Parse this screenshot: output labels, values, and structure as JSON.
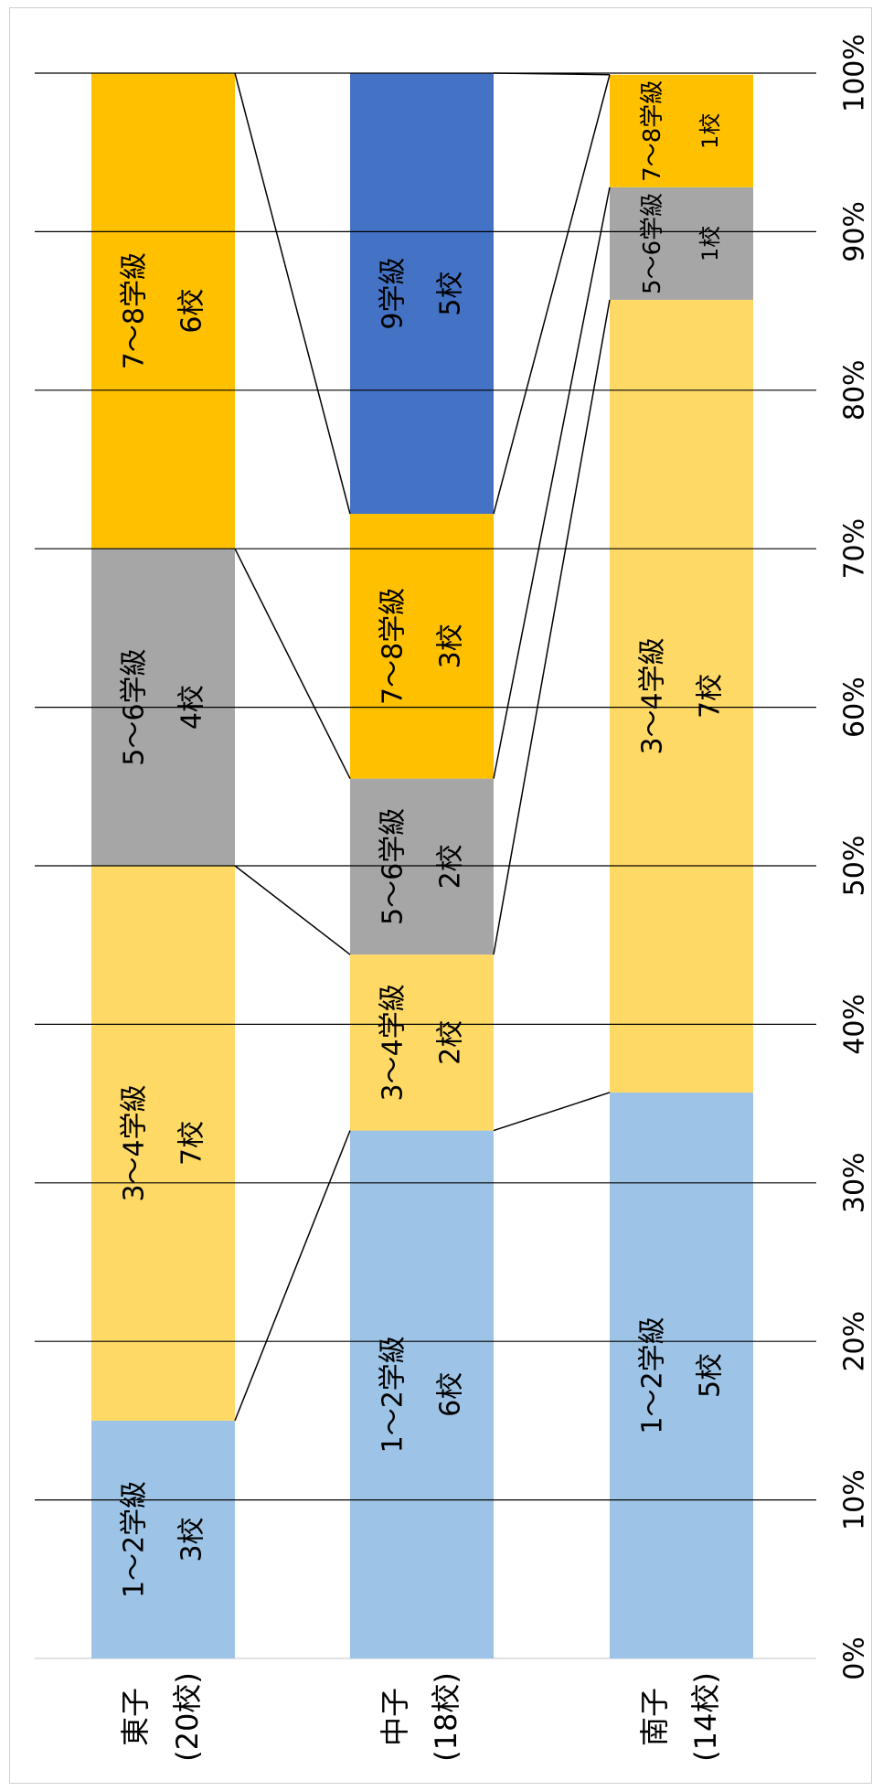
{
  "chart_data": {
    "type": "bar",
    "orientation": "horizontal-stacked-100",
    "rotated": "90deg-clockwise",
    "title": "",
    "xlabel": "",
    "ylabel": "",
    "xlim": [
      0,
      100
    ],
    "grid": true,
    "ticks": [
      "0%",
      "10%",
      "20%",
      "30%",
      "40%",
      "50%",
      "60%",
      "70%",
      "80%",
      "90%",
      "100%"
    ],
    "categories": [
      {
        "name": "東子",
        "count": "(20校)"
      },
      {
        "name": "中子",
        "count": "(18校)"
      },
      {
        "name": "南子",
        "count": "(14校)"
      }
    ],
    "series_colors": {
      "1～2学級": "#9DC3E6",
      "3～4学級": "#FFD966",
      "5～6学級": "#A6A6A6",
      "7～8学級": "#FFC000",
      "9学級": "#4472C4"
    },
    "bars": [
      {
        "segments": [
          {
            "name": "1～2学級",
            "label": "1～2学級",
            "count": "3校",
            "value": 15.0
          },
          {
            "name": "3～4学級",
            "label": "3～4学級",
            "count": "7校",
            "value": 35.0
          },
          {
            "name": "5～6学級",
            "label": "5～6学級",
            "count": "4校",
            "value": 20.0
          },
          {
            "name": "7～8学級",
            "label": "7～8学級",
            "count": "6校",
            "value": 30.0
          }
        ]
      },
      {
        "segments": [
          {
            "name": "1～2学級",
            "label": "1～2学級",
            "count": "6校",
            "value": 33.3
          },
          {
            "name": "3～4学級",
            "label": "3～4学級",
            "count": "2校",
            "value": 11.1
          },
          {
            "name": "5～6学級",
            "label": "5～6学級",
            "count": "2校",
            "value": 11.1
          },
          {
            "name": "7～8学級",
            "label": "7～8学級",
            "count": "3校",
            "value": 16.7
          },
          {
            "name": "9学級",
            "label": "9学級",
            "count": "5校",
            "value": 27.8
          }
        ]
      },
      {
        "segments": [
          {
            "name": "1～2学級",
            "label": "1～2学級",
            "count": "5校",
            "value": 35.7
          },
          {
            "name": "3～4学級",
            "label": "3～4学級",
            "count": "7校",
            "value": 50.0
          },
          {
            "name": "5～6学級",
            "label": "5～6学級",
            "count": "1校",
            "value": 7.1
          },
          {
            "name": "7～8学級",
            "label": "7～8学級",
            "count": "1校",
            "value": 7.1
          }
        ]
      }
    ]
  }
}
